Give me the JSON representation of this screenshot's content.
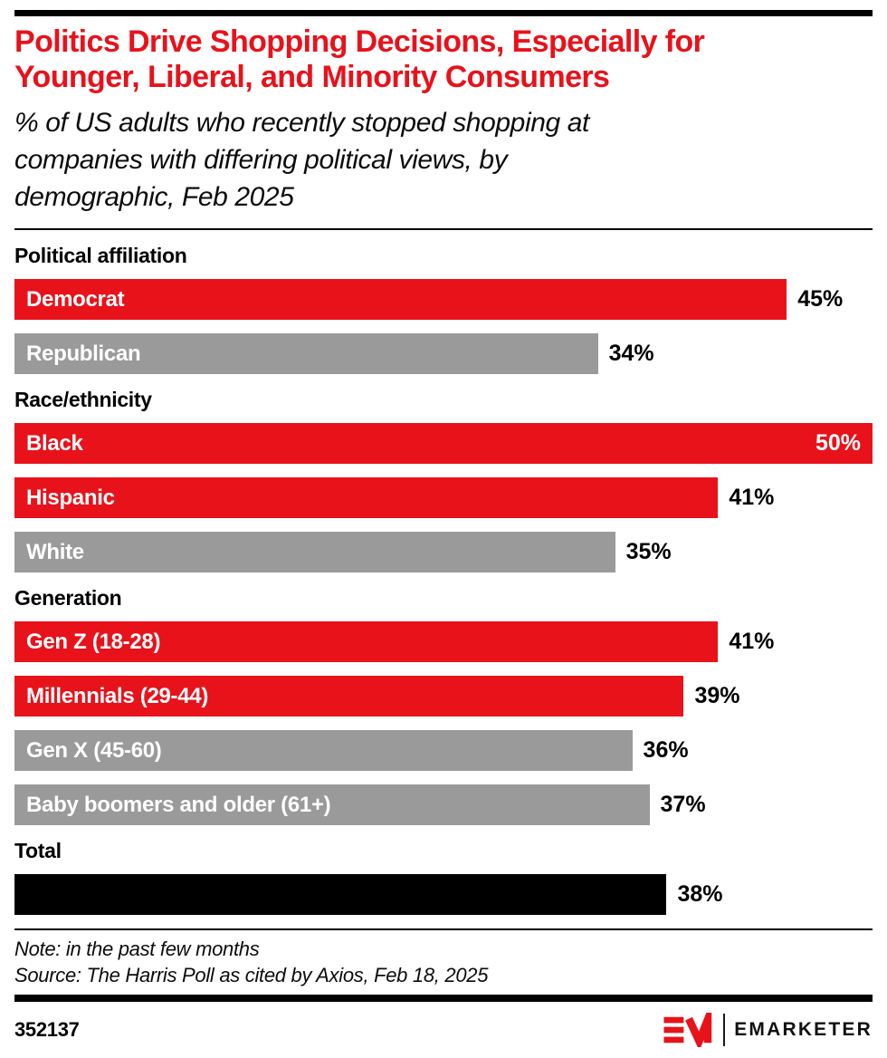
{
  "header": {
    "title": "Politics Drive Shopping Decisions, Especially for Younger, Liberal, and Minority Consumers",
    "title_lines": [
      "Politics Drive Shopping Decisions, Especially for",
      "Younger, Liberal, and Minority Consumers"
    ],
    "subtitle": "% of US adults who recently stopped shopping at companies with differing political views, by demographic, Feb 2025",
    "subtitle_lines": [
      "% of US adults who recently stopped shopping at",
      "companies with differing political views, by",
      "demographic, Feb 2025"
    ]
  },
  "colors": {
    "red": "#E8121B",
    "gray": "#9A9A9A",
    "black": "#000000",
    "title_red": "#E8121B"
  },
  "sections": [
    {
      "heading": "Political affiliation",
      "bars": [
        {
          "label": "Democrat",
          "value": 45,
          "display": "45%",
          "color": "red",
          "value_inside": false
        },
        {
          "label": "Republican",
          "value": 34,
          "display": "34%",
          "color": "gray",
          "value_inside": false
        }
      ]
    },
    {
      "heading": "Race/ethnicity",
      "bars": [
        {
          "label": "Black",
          "value": 50,
          "display": "50%",
          "color": "red",
          "value_inside": true
        },
        {
          "label": "Hispanic",
          "value": 41,
          "display": "41%",
          "color": "red",
          "value_inside": false
        },
        {
          "label": "White",
          "value": 35,
          "display": "35%",
          "color": "gray",
          "value_inside": false
        }
      ]
    },
    {
      "heading": "Generation",
      "bars": [
        {
          "label": "Gen Z (18-28)",
          "value": 41,
          "display": "41%",
          "color": "red",
          "value_inside": false
        },
        {
          "label": "Millennials (29-44)",
          "value": 39,
          "display": "39%",
          "color": "red",
          "value_inside": false
        },
        {
          "label": "Gen X (45-60)",
          "value": 36,
          "display": "36%",
          "color": "gray",
          "value_inside": false
        },
        {
          "label": "Baby boomers and older (61+)",
          "value": 37,
          "display": "37%",
          "color": "gray",
          "value_inside": false
        }
      ]
    },
    {
      "heading": "Total",
      "bars": [
        {
          "label": "",
          "value": 38,
          "display": "38%",
          "color": "black",
          "value_inside": false
        }
      ]
    }
  ],
  "notes": {
    "note": "Note: in the past few months",
    "source": "Source: The Harris Poll as cited by Axios, Feb 18, 2025"
  },
  "footer": {
    "chart_number": "352137",
    "brand": "EMARKETER"
  },
  "chart_data": {
    "type": "bar",
    "orientation": "horizontal",
    "title": "Politics Drive Shopping Decisions, Especially for Younger, Liberal, and Minority Consumers",
    "subtitle": "% of US adults who recently stopped shopping at companies with differing political views, by demographic, Feb 2025",
    "unit": "%",
    "axis_max": 50,
    "grid": false,
    "legend": false,
    "groups": [
      {
        "name": "Political affiliation",
        "categories": [
          "Democrat",
          "Republican"
        ],
        "values": [
          45,
          34
        ],
        "bar_colors": [
          "#E8121B",
          "#9A9A9A"
        ]
      },
      {
        "name": "Race/ethnicity",
        "categories": [
          "Black",
          "Hispanic",
          "White"
        ],
        "values": [
          50,
          41,
          35
        ],
        "bar_colors": [
          "#E8121B",
          "#E8121B",
          "#9A9A9A"
        ]
      },
      {
        "name": "Generation",
        "categories": [
          "Gen Z (18-28)",
          "Millennials (29-44)",
          "Gen X (45-60)",
          "Baby boomers and older (61+)"
        ],
        "values": [
          41,
          39,
          36,
          37
        ],
        "bar_colors": [
          "#E8121B",
          "#E8121B",
          "#9A9A9A",
          "#9A9A9A"
        ]
      },
      {
        "name": "Total",
        "categories": [
          "Total"
        ],
        "values": [
          38
        ],
        "bar_colors": [
          "#000000"
        ]
      }
    ],
    "note": "in the past few months",
    "source": "The Harris Poll as cited by Axios, Feb 18, 2025"
  }
}
